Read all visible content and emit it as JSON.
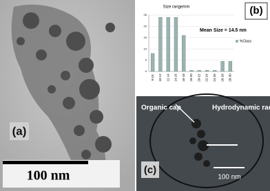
{
  "panel_a": {
    "label": "(a)",
    "scale_bar": "100 nm"
  },
  "panel_c": {
    "label": "(c)",
    "scale_bar": "100 nm",
    "annotations": [
      "Organic cap",
      "Hydrodynamic radius"
    ]
  },
  "chart_data": {
    "type": "bar",
    "label": "(b)",
    "title": "Size range/nm",
    "annotation": "Mean Size = 14.5 nm",
    "categories": [
      "8-10",
      "10-12",
      "12-14",
      "14-16",
      "16-18",
      "18-20",
      "20-22",
      "22-24",
      "24-26",
      "26-28",
      "28-30"
    ],
    "series": [
      {
        "name": "%Class",
        "color": "#9bb3b0",
        "values": [
          8,
          24,
          24,
          24,
          16,
          0.5,
          0.5,
          0.5,
          0.5,
          4.5,
          4.5
        ]
      }
    ],
    "ylim": [
      0,
      25
    ],
    "yticks": [
      0,
      5,
      10,
      15,
      20,
      25
    ],
    "grid": true
  }
}
